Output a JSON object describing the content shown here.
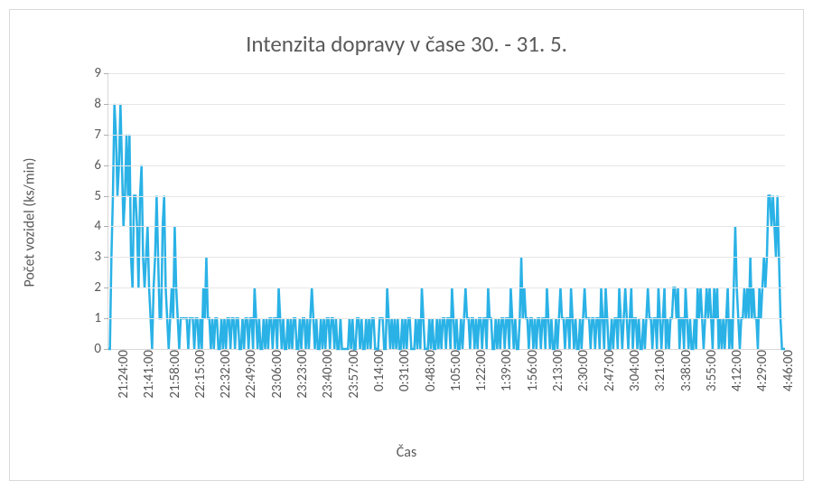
{
  "chart": {
    "type": "line",
    "title": "Intenzita dopravy v čase 30. - 31. 5.",
    "title_fontsize": 25,
    "title_color": "#595959",
    "series_color": "#2ab2e6",
    "line_width": 2.5,
    "background_color": "#ffffff",
    "border_color": "#d9d9d9",
    "grid_color": "#e6e6e6",
    "tick_color": "#b0b0b0",
    "tick_label_color": "#595959",
    "tick_label_fontsize": 15,
    "axis_title_fontsize": 16,
    "x_axis_title": "Čas",
    "y_axis_title": "Počet vozidel (ks/min)",
    "ylim": [
      0,
      9
    ],
    "yticks": [
      0,
      1,
      2,
      3,
      4,
      5,
      6,
      7,
      8,
      9
    ],
    "xtick_labels": [
      "21:24:00",
      "21:41:00",
      "21:58:00",
      "22:15:00",
      "22:32:00",
      "22:49:00",
      "23:06:00",
      "23:23:00",
      "23:40:00",
      "23:57:00",
      "0:14:00",
      "0:31:00",
      "0:48:00",
      "1:05:00",
      "1:22:00",
      "1:39:00",
      "1:56:00",
      "2:13:00",
      "2:30:00",
      "2:47:00",
      "3:04:00",
      "3:21:00",
      "3:38:00",
      "3:55:00",
      "4:12:00",
      "4:29:00",
      "4:46:00"
    ],
    "xtick_interval_minutes": 17,
    "x_start_minute": 0,
    "x_end_minute": 450,
    "values": [
      0,
      0,
      3,
      5,
      8,
      7,
      5,
      6,
      8,
      6,
      4,
      5,
      7,
      5,
      7,
      3,
      2,
      5,
      5,
      4,
      2,
      5,
      6,
      3,
      2,
      3,
      4,
      2,
      1,
      0,
      2,
      3,
      5,
      3,
      1,
      1,
      4,
      5,
      2,
      1,
      0,
      1,
      2,
      1,
      4,
      2,
      1,
      0,
      1,
      1,
      1,
      1,
      1,
      0,
      1,
      1,
      1,
      0,
      1,
      1,
      0,
      1,
      0,
      2,
      1,
      3,
      1,
      1,
      0,
      1,
      0,
      1,
      1,
      0,
      0,
      1,
      0,
      1,
      0,
      1,
      1,
      0,
      1,
      1,
      0,
      1,
      1,
      0,
      0,
      1,
      0,
      1,
      1,
      0,
      1,
      1,
      0,
      2,
      1,
      0,
      1,
      0,
      0,
      1,
      0,
      1,
      0,
      1,
      1,
      0,
      1,
      1,
      0,
      2,
      1,
      0,
      1,
      0,
      0,
      1,
      0,
      1,
      0,
      1,
      1,
      0,
      0,
      1,
      0,
      1,
      1,
      0,
      1,
      0,
      1,
      2,
      1,
      0,
      1,
      0,
      0,
      1,
      0,
      1,
      0,
      1,
      1,
      0,
      1,
      1,
      0,
      1,
      0,
      0,
      1,
      0,
      0,
      0,
      0,
      0,
      1,
      0,
      1,
      0,
      0,
      1,
      1,
      0,
      1,
      0,
      0,
      1,
      0,
      1,
      0,
      1,
      1,
      0,
      0,
      0,
      1,
      1,
      1,
      0,
      0,
      2,
      1,
      0,
      1,
      0,
      1,
      0,
      1,
      0,
      0,
      1,
      0,
      1,
      0,
      1,
      1,
      0,
      0,
      0,
      1,
      0,
      1,
      0,
      2,
      1,
      0,
      0,
      0,
      1,
      0,
      1,
      0,
      0,
      1,
      0,
      1,
      0,
      1,
      1,
      0,
      1,
      1,
      0,
      2,
      1,
      0,
      1,
      0,
      0,
      1,
      0,
      1,
      2,
      1,
      1,
      0,
      1,
      1,
      0,
      1,
      0,
      1,
      1,
      0,
      1,
      1,
      0,
      2,
      1,
      1,
      0,
      0,
      1,
      0,
      1,
      0,
      1,
      1,
      0,
      1,
      1,
      0,
      2,
      1,
      0,
      1,
      0,
      0,
      1,
      3,
      1,
      2,
      1,
      1,
      0,
      1,
      1,
      0,
      1,
      0,
      1,
      1,
      0,
      1,
      1,
      0,
      2,
      1,
      0,
      1,
      0,
      0,
      1,
      0,
      1,
      2,
      1,
      1,
      0,
      1,
      1,
      0,
      2,
      1,
      0,
      1,
      0,
      0,
      1,
      0,
      1,
      2,
      1,
      1,
      1,
      0,
      1,
      1,
      0,
      1,
      1,
      0,
      2,
      1,
      0,
      2,
      1,
      0,
      0,
      1,
      0,
      1,
      1,
      0,
      2,
      1,
      0,
      1,
      2,
      1,
      0,
      1,
      2,
      0,
      1,
      1,
      0,
      1,
      0,
      0,
      1,
      0,
      1,
      2,
      1,
      1,
      0,
      1,
      1,
      0,
      2,
      1,
      0,
      1,
      2,
      0,
      1,
      0,
      1,
      1,
      2,
      2,
      1,
      2,
      0,
      1,
      1,
      0,
      2,
      1,
      0,
      1,
      0,
      0,
      1,
      0,
      2,
      1,
      2,
      1,
      0,
      1,
      2,
      1,
      2,
      1,
      0,
      2,
      1,
      2,
      0,
      1,
      0,
      1,
      0,
      1,
      2,
      0,
      1,
      0,
      2,
      4,
      2,
      1,
      0,
      1,
      1,
      2,
      1,
      2,
      1,
      3,
      1,
      2,
      1,
      1,
      0,
      2,
      1,
      2,
      3,
      2,
      3,
      5,
      5,
      4,
      5,
      4,
      3,
      5,
      3,
      1,
      0,
      0,
      0
    ]
  }
}
